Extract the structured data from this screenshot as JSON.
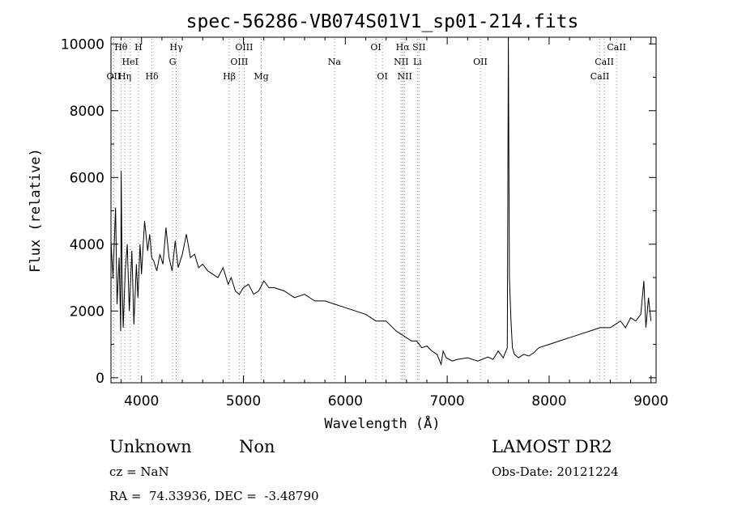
{
  "chart_data": {
    "type": "line",
    "title": "spec-56286-VB074S01V1_sp01-214.fits",
    "xlabel": "Wavelength (Å)",
    "ylabel": "Flux (relative)",
    "xlim": [
      3700,
      9050
    ],
    "ylim": [
      -150,
      10200
    ],
    "xticks": [
      4000,
      5000,
      6000,
      7000,
      8000,
      9000
    ],
    "yticks": [
      0,
      2000,
      4000,
      6000,
      8000,
      10000
    ],
    "grid": false,
    "line_color": "#000000",
    "line_markers": [
      {
        "label": "Hθ",
        "x": 3798,
        "row": 0
      },
      {
        "label": "H",
        "x": 3970,
        "row": 0
      },
      {
        "label": "HeI",
        "x": 3889,
        "row": 1
      },
      {
        "label": "OII",
        "x": 3727,
        "row": 2
      },
      {
        "label": "Hη",
        "x": 3835,
        "row": 2
      },
      {
        "label": "Hδ",
        "x": 4102,
        "row": 2
      },
      {
        "label": "Hγ",
        "x": 4340,
        "row": 0
      },
      {
        "label": "G",
        "x": 4305,
        "row": 1
      },
      {
        "label": "OIII",
        "x": 5007,
        "row": 0
      },
      {
        "label": "OIII",
        "x": 4959,
        "row": 1
      },
      {
        "label": "Hβ",
        "x": 4861,
        "row": 2
      },
      {
        "label": "Mg",
        "x": 5175,
        "row": 2
      },
      {
        "label": "Na",
        "x": 5893,
        "row": 1
      },
      {
        "label": "OI",
        "x": 6300,
        "row": 0
      },
      {
        "label": "OI",
        "x": 6364,
        "row": 2
      },
      {
        "label": "Hα",
        "x": 6563,
        "row": 0
      },
      {
        "label": "SII",
        "x": 6724,
        "row": 0
      },
      {
        "label": "NII",
        "x": 6548,
        "row": 1
      },
      {
        "label": "Li",
        "x": 6708,
        "row": 1
      },
      {
        "label": "NII",
        "x": 6583,
        "row": 2
      },
      {
        "label": "OII",
        "x": 7325,
        "row": 1
      },
      {
        "label": "CaII",
        "x": 8662,
        "row": 0
      },
      {
        "label": "CaII",
        "x": 8542,
        "row": 1
      },
      {
        "label": "CaII",
        "x": 8498,
        "row": 2
      }
    ],
    "series": [
      {
        "x": [
          3700,
          3720,
          3745,
          3760,
          3780,
          3795,
          3800,
          3810,
          3820,
          3840,
          3860,
          3880,
          3905,
          3925,
          3950,
          3965,
          3985,
          4000,
          4030,
          4060,
          4080,
          4100,
          4120,
          4150,
          4180,
          4210,
          4240,
          4270,
          4300,
          4330,
          4360,
          4400,
          4440,
          4480,
          4520,
          4560,
          4600,
          4650,
          4700,
          4750,
          4800,
          4850,
          4880,
          4920,
          4960,
          5000,
          5050,
          5100,
          5150,
          5200,
          5250,
          5300,
          5400,
          5500,
          5600,
          5700,
          5800,
          5900,
          6000,
          6100,
          6200,
          6300,
          6400,
          6500,
          6550,
          6600,
          6650,
          6700,
          6750,
          6800,
          6850,
          6900,
          6940,
          6960,
          6990,
          7050,
          7100,
          7200,
          7300,
          7400,
          7450,
          7500,
          7550,
          7590,
          7600,
          7610,
          7625,
          7640,
          7660,
          7680,
          7700,
          7750,
          7800,
          7850,
          7900,
          8000,
          8100,
          8200,
          8300,
          8400,
          8500,
          8600,
          8650,
          8700,
          8750,
          8800,
          8850,
          8900,
          8930,
          8950,
          8975,
          9000
        ],
        "y": [
          4100,
          3000,
          5100,
          2200,
          3600,
          1400,
          6200,
          3000,
          1500,
          3200,
          4000,
          2000,
          3800,
          1600,
          3400,
          2400,
          4000,
          3100,
          4700,
          3800,
          4300,
          3600,
          3500,
          3200,
          3700,
          3400,
          4500,
          3600,
          3200,
          4100,
          3300,
          3700,
          4300,
          3600,
          3700,
          3300,
          3400,
          3200,
          3100,
          3000,
          3300,
          2800,
          3000,
          2600,
          2500,
          2700,
          2800,
          2500,
          2600,
          2900,
          2700,
          2700,
          2600,
          2400,
          2500,
          2300,
          2300,
          2200,
          2100,
          2000,
          1900,
          1700,
          1700,
          1400,
          1300,
          1200,
          1100,
          1100,
          900,
          950,
          800,
          700,
          400,
          800,
          600,
          500,
          550,
          600,
          500,
          620,
          550,
          800,
          600,
          900,
          10200,
          3000,
          1800,
          900,
          700,
          650,
          600,
          700,
          650,
          750,
          900,
          1000,
          1100,
          1200,
          1300,
          1400,
          1500,
          1500,
          1600,
          1700,
          1500,
          1800,
          1700,
          1900,
          2900,
          1500,
          2400,
          1700
        ]
      }
    ]
  },
  "info": {
    "class": "Unknown",
    "subclass": "Non",
    "survey": "LAMOST DR2",
    "cz": "cz = NaN",
    "obs_date": "Obs-Date: 20121224",
    "coords": "RA =  74.33936, DEC =  -3.48790"
  }
}
